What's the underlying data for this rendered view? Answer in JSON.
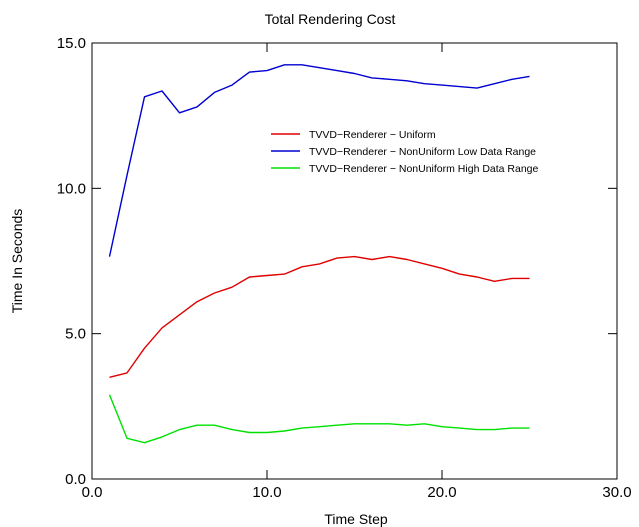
{
  "chart_data": {
    "type": "line",
    "title": "Total Rendering Cost",
    "xlabel": "Time Step",
    "ylabel": "Time In Seconds",
    "xlim": [
      0,
      30
    ],
    "ylim": [
      0,
      15
    ],
    "xticks": [
      0,
      10,
      20,
      30
    ],
    "yticks": [
      0,
      5,
      10,
      15
    ],
    "xtick_labels": [
      "0.0",
      "10.0",
      "20.0",
      "30.0"
    ],
    "ytick_labels": [
      "0.0",
      "5.0",
      "10.0",
      "15.0"
    ],
    "grid": false,
    "legend_position": "inside-upper-right",
    "series": [
      {
        "name": "TVVD−Renderer − Uniform",
        "color": "#e00000",
        "x": [
          1,
          2,
          3,
          4,
          5,
          6,
          7,
          8,
          9,
          10,
          11,
          12,
          13,
          14,
          15,
          16,
          17,
          18,
          19,
          20,
          21,
          22,
          23,
          24,
          25
        ],
        "values": [
          3.5,
          3.65,
          4.5,
          5.2,
          5.65,
          6.1,
          6.4,
          6.6,
          6.95,
          7.0,
          7.05,
          7.3,
          7.4,
          7.6,
          7.65,
          7.55,
          7.65,
          7.55,
          7.4,
          7.25,
          7.05,
          6.95,
          6.8,
          6.9,
          6.9
        ]
      },
      {
        "name": "TVVD−Renderer − NonUniform Low Data Range",
        "color": "#0000d0",
        "x": [
          1,
          2,
          3,
          4,
          5,
          6,
          7,
          8,
          9,
          10,
          11,
          12,
          13,
          14,
          15,
          16,
          17,
          18,
          19,
          20,
          21,
          22,
          23,
          24,
          25
        ],
        "values": [
          7.65,
          10.45,
          13.15,
          13.35,
          12.6,
          12.8,
          13.3,
          13.55,
          14.0,
          14.05,
          14.25,
          14.25,
          14.15,
          14.05,
          13.95,
          13.8,
          13.75,
          13.7,
          13.6,
          13.55,
          13.5,
          13.45,
          13.6,
          13.75,
          13.85
        ]
      },
      {
        "name": "TVVD−Renderer − NonUniform High Data Range",
        "color": "#00e000",
        "x": [
          1,
          2,
          3,
          4,
          5,
          6,
          7,
          8,
          9,
          10,
          11,
          12,
          13,
          14,
          15,
          16,
          17,
          18,
          19,
          20,
          21,
          22,
          23,
          24,
          25
        ],
        "values": [
          2.9,
          1.4,
          1.25,
          1.45,
          1.7,
          1.85,
          1.85,
          1.7,
          1.6,
          1.6,
          1.65,
          1.75,
          1.8,
          1.85,
          1.9,
          1.9,
          1.9,
          1.85,
          1.9,
          1.8,
          1.75,
          1.7,
          1.7,
          1.75,
          1.75
        ]
      }
    ]
  }
}
